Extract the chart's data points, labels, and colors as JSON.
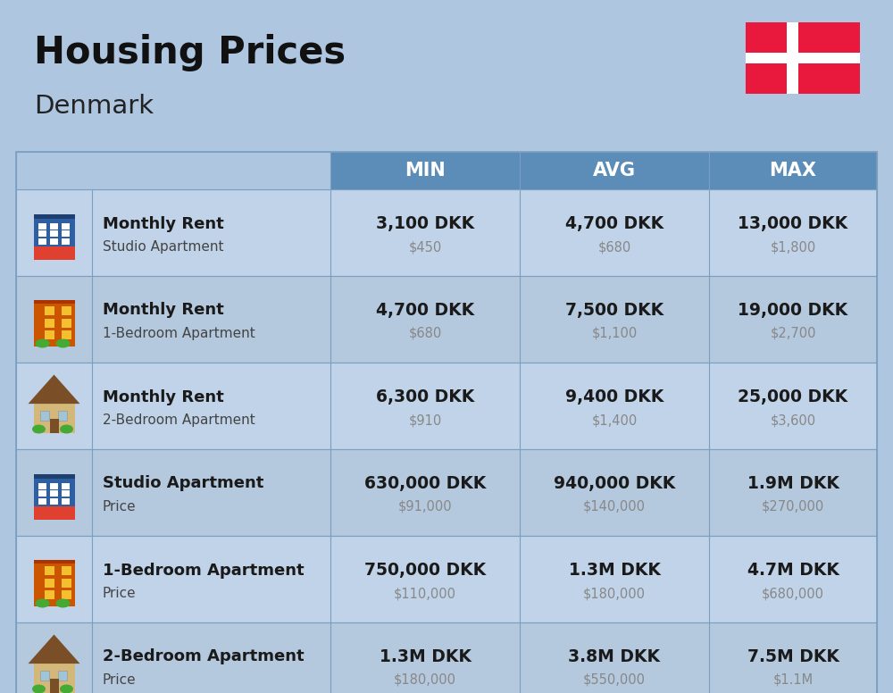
{
  "title": "Housing Prices",
  "subtitle": "Denmark",
  "bg_color": "#aec6e0",
  "header_bg": "#5b8db8",
  "header_text_color": "#ffffff",
  "cell_border_color": "#7a9fc0",
  "dkk_color": "#1a1a1a",
  "usd_color": "#888888",
  "row_colors": [
    "#c0d3e8",
    "#b4c8de"
  ],
  "columns": [
    "MIN",
    "AVG",
    "MAX"
  ],
  "rows": [
    {
      "bold_label": "Monthly Rent",
      "sub_label": "Studio Apartment",
      "icon_type": "studio_blue",
      "min_dkk": "3,100 DKK",
      "min_usd": "$450",
      "avg_dkk": "4,700 DKK",
      "avg_usd": "$680",
      "max_dkk": "13,000 DKK",
      "max_usd": "$1,800"
    },
    {
      "bold_label": "Monthly Rent",
      "sub_label": "1-Bedroom Apartment",
      "icon_type": "apt_orange",
      "min_dkk": "4,700 DKK",
      "min_usd": "$680",
      "avg_dkk": "7,500 DKK",
      "avg_usd": "$1,100",
      "max_dkk": "19,000 DKK",
      "max_usd": "$2,700"
    },
    {
      "bold_label": "Monthly Rent",
      "sub_label": "2-Bedroom Apartment",
      "icon_type": "house_beige",
      "min_dkk": "6,300 DKK",
      "min_usd": "$910",
      "avg_dkk": "9,400 DKK",
      "avg_usd": "$1,400",
      "max_dkk": "25,000 DKK",
      "max_usd": "$3,600"
    },
    {
      "bold_label": "Studio Apartment",
      "sub_label": "Price",
      "icon_type": "studio_blue",
      "min_dkk": "630,000 DKK",
      "min_usd": "$91,000",
      "avg_dkk": "940,000 DKK",
      "avg_usd": "$140,000",
      "max_dkk": "1.9M DKK",
      "max_usd": "$270,000"
    },
    {
      "bold_label": "1-Bedroom Apartment",
      "sub_label": "Price",
      "icon_type": "apt_orange",
      "min_dkk": "750,000 DKK",
      "min_usd": "$110,000",
      "avg_dkk": "1.3M DKK",
      "avg_usd": "$180,000",
      "max_dkk": "4.7M DKK",
      "max_usd": "$680,000"
    },
    {
      "bold_label": "2-Bedroom Apartment",
      "sub_label": "Price",
      "icon_type": "house_beige",
      "min_dkk": "1.3M DKK",
      "min_usd": "$180,000",
      "avg_dkk": "3.8M DKK",
      "avg_usd": "$550,000",
      "max_dkk": "7.5M DKK",
      "max_usd": "$1.1M"
    }
  ],
  "flag_color": "#E8193C",
  "flag_white": "#ffffff"
}
